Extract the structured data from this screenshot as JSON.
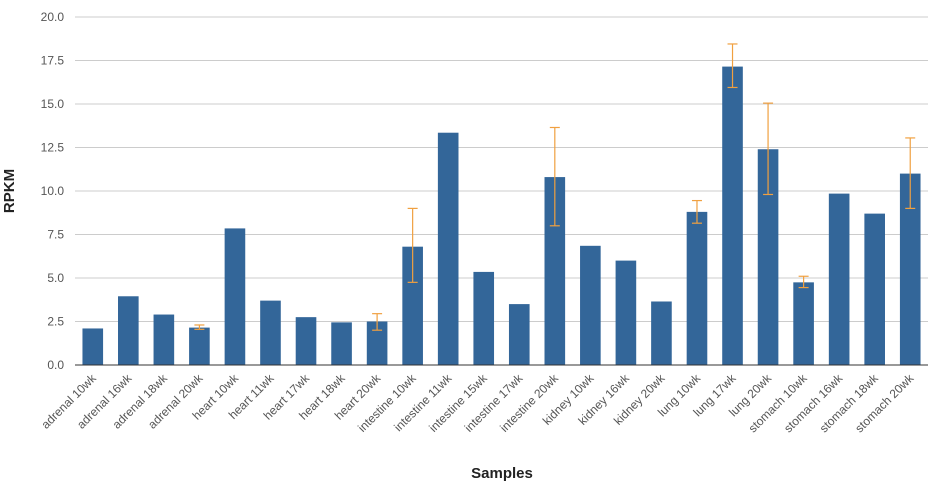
{
  "chart_data": {
    "type": "bar",
    "xlabel": "Samples",
    "ylabel": "RPKM",
    "ylim": [
      0,
      20
    ],
    "yticks": [
      "0.0",
      "2.5",
      "5.0",
      "7.5",
      "10.0",
      "12.5",
      "15.0",
      "17.5",
      "20.0"
    ],
    "grid": true,
    "bar_color": "#336699",
    "error_color": "#f0a040",
    "categories": [
      "adrenal 10wk",
      "adrenal 16wk",
      "adrenal 18wk",
      "adrenal 20wk",
      "heart 10wk",
      "heart 11wk",
      "heart 17wk",
      "heart 18wk",
      "heart 20wk",
      "intestine 10wk",
      "intestine 11wk",
      "intestine 15wk",
      "intestine 17wk",
      "intestine 20wk",
      "kidney 10wk",
      "kidney 16wk",
      "kidney 20wk",
      "lung 10wk",
      "lung 17wk",
      "lung 20wk",
      "stomach 10wk",
      "stomach 16wk",
      "stomach 18wk",
      "stomach 20wk"
    ],
    "values": [
      2.1,
      3.95,
      2.9,
      2.15,
      7.85,
      3.7,
      2.75,
      2.45,
      2.5,
      6.8,
      13.35,
      5.35,
      3.5,
      10.8,
      6.85,
      6.0,
      3.65,
      8.8,
      17.15,
      12.4,
      4.75,
      9.85,
      8.7,
      11.0
    ],
    "error_bars": [
      null,
      null,
      null,
      [
        2.05,
        2.3
      ],
      null,
      null,
      null,
      null,
      [
        2.0,
        2.95
      ],
      [
        4.75,
        9.0
      ],
      null,
      null,
      null,
      [
        8.0,
        13.65
      ],
      null,
      null,
      null,
      [
        8.15,
        9.45
      ],
      [
        15.95,
        18.45
      ],
      [
        9.8,
        15.05
      ],
      [
        4.45,
        5.1
      ],
      null,
      null,
      [
        9.0,
        13.05
      ]
    ]
  }
}
